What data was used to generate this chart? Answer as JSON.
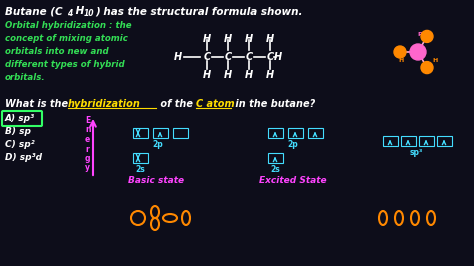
{
  "bg_color": "#0d0d1a",
  "white": "#ffffff",
  "green": "#33dd55",
  "yellow": "#ffdd00",
  "magenta": "#ff44ff",
  "cyan": "#44ddff",
  "orange": "#ff8800",
  "pink": "#ff66cc",
  "title_main": "Butane (C",
  "title_sub1": "4",
  "title_mid": " H",
  "title_sub2": "10",
  "title_end": ") has the structural formula shown.",
  "green_lines": [
    "Orbital hybridization : the",
    "concept of mixing atomic",
    "orbitals into new and",
    "different types of hybrid",
    "orbitals."
  ],
  "answers": [
    "A) sp³",
    "B) sp",
    "C) sp²",
    "D) sp³d"
  ],
  "selected_answer": 0,
  "basic_state_label": "Basic state",
  "excited_state_label": "Excited State",
  "sp3_label": "sp³",
  "label_2p": "2p",
  "label_2s": "2s",
  "energy_letters": [
    "E",
    "n",
    "e",
    "r",
    "g",
    "y"
  ]
}
